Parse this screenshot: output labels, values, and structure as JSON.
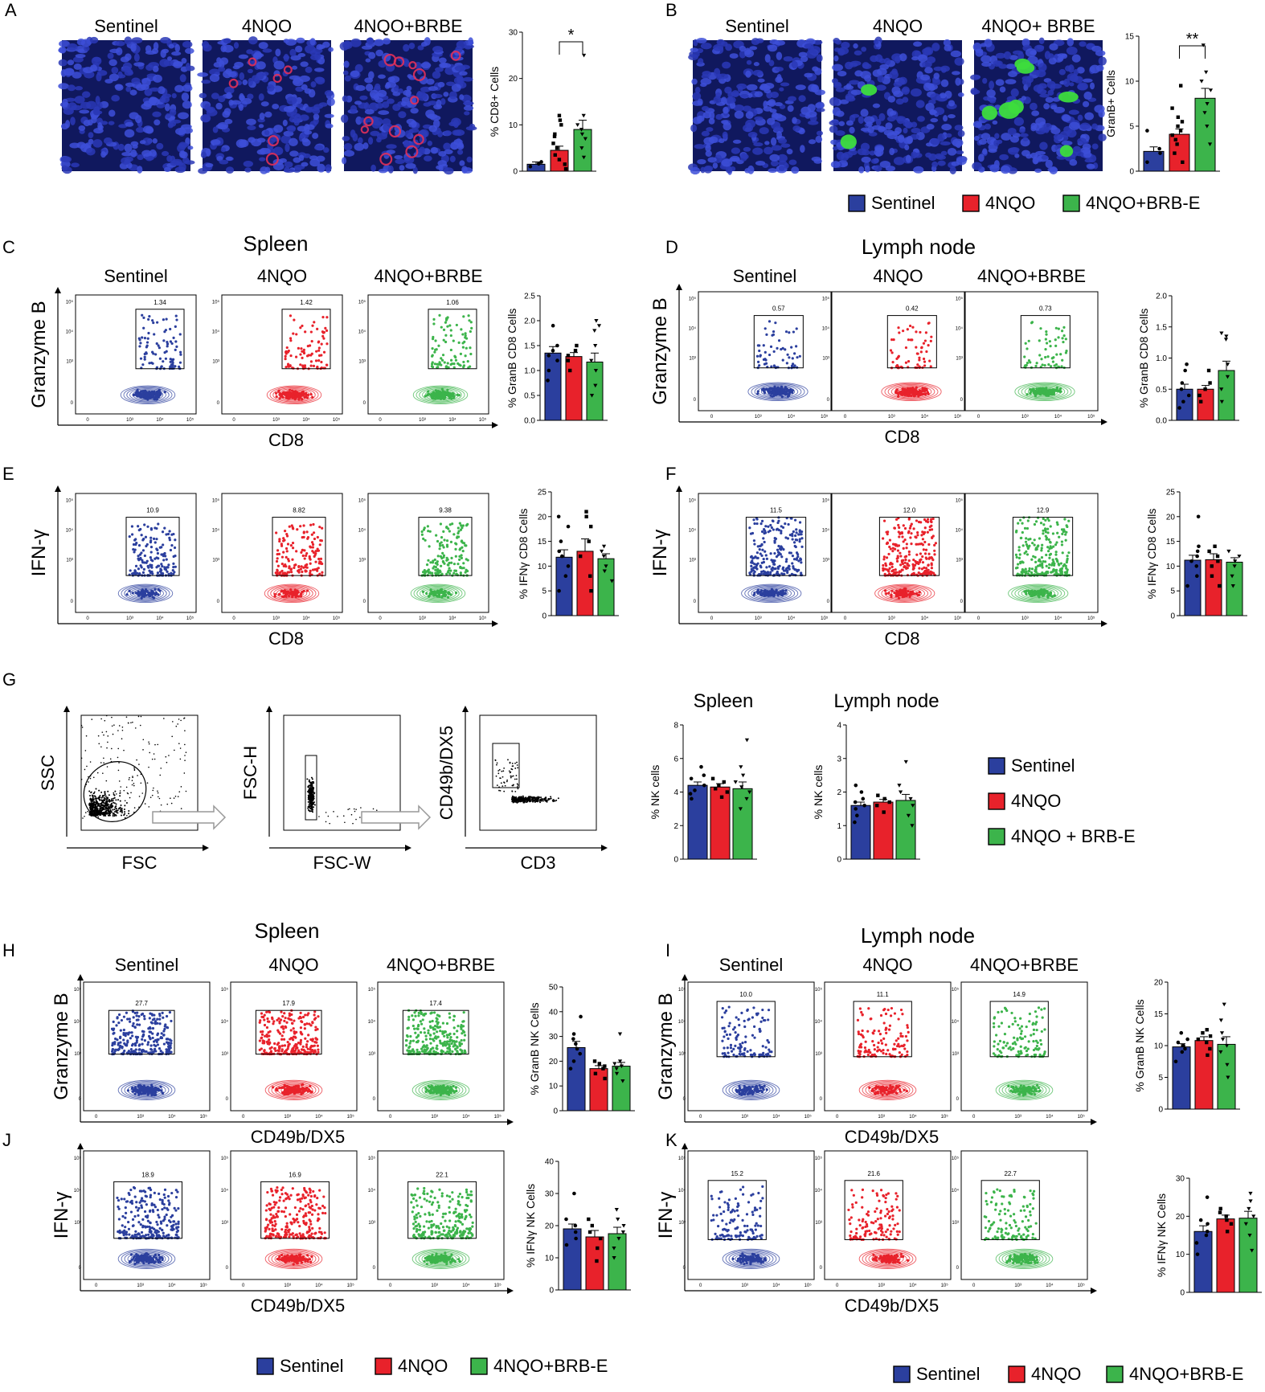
{
  "colors": {
    "sentinel": "#2b3f9e",
    "nqo": "#e8222b",
    "brbe": "#3cb44b",
    "micro_bg": "#1e2a9a",
    "cd8_stain": "#e0305a",
    "granb_stain": "#3ddc3d"
  },
  "panels": {
    "A": {
      "letter": "A",
      "groups": [
        "Sentinel",
        "4NQO",
        "4NQO+BRBE"
      ],
      "stain": "cd8"
    },
    "B": {
      "letter": "B",
      "groups": [
        "Sentinel",
        "4NQO",
        "4NQO+ BRBE"
      ],
      "stain": "granb"
    },
    "C": {
      "letter": "C",
      "tissue": "Spleen",
      "groups": [
        "Sentinel",
        "4NQO",
        "4NQO+BRBE"
      ],
      "ylabel": "Granzyme B",
      "xlabel": "CD8",
      "gates": [
        "1.34",
        "1.42",
        "1.06"
      ]
    },
    "D": {
      "letter": "D",
      "tissue": "Lymph node",
      "groups": [
        "Sentinel",
        "4NQO",
        "4NQO+BRBE"
      ],
      "ylabel": "Granzyme B",
      "xlabel": "CD8",
      "gates": [
        "0.57",
        "0.42",
        "0.73"
      ]
    },
    "E": {
      "letter": "E",
      "ylabel": "IFN-γ",
      "xlabel": "CD8",
      "gates": [
        "10.9",
        "8.82",
        "9.38"
      ]
    },
    "F": {
      "letter": "F",
      "ylabel": "IFN-γ",
      "xlabel": "CD8",
      "gates": [
        "11.5",
        "12.0",
        "12.9"
      ]
    },
    "G": {
      "letter": "G",
      "gating": [
        {
          "ylabel": "SSC",
          "xlabel": "FSC"
        },
        {
          "ylabel": "FSC-H",
          "xlabel": "FSC-W"
        },
        {
          "ylabel": "CD49b/DX5",
          "xlabel": "CD3"
        }
      ],
      "titles": [
        "Spleen",
        "Lymph node"
      ]
    },
    "H": {
      "letter": "H",
      "tissue": "Spleen",
      "groups": [
        "Sentinel",
        "4NQO",
        "4NQO+BRBE"
      ],
      "ylabel": "Granzyme B",
      "xlabel": "CD49b/DX5",
      "gates": [
        "27.7",
        "17.9",
        "17.4"
      ]
    },
    "I": {
      "letter": "I",
      "tissue": "Lymph node",
      "groups": [
        "Sentinel",
        "4NQO",
        "4NQO+BRBE"
      ],
      "ylabel": "Granzyme B",
      "xlabel": "CD49b/DX5",
      "gates": [
        "10.0",
        "11.1",
        "14.9"
      ]
    },
    "J": {
      "letter": "J",
      "ylabel": "IFN-γ",
      "xlabel": "CD49b/DX5",
      "gates": [
        "18.9",
        "16.9",
        "22.1"
      ]
    },
    "K": {
      "letter": "K",
      "ylabel": "IFN-γ",
      "xlabel": "CD49b/DX5",
      "gates": [
        "15.2",
        "21.6",
        "22.7"
      ]
    }
  },
  "legends": {
    "top": [
      "Sentinel",
      "4NQO",
      "4NQO+BRB-E"
    ],
    "g": [
      "Sentinel",
      "4NQO",
      "4NQO + BRB-E"
    ],
    "bottom_left": [
      "Sentinel",
      "4NQO",
      "4NQO+BRB-E"
    ],
    "bottom_right": [
      "Sentinel",
      "4NQO",
      "4NQO+BRB-E"
    ]
  },
  "chart_data": [
    {
      "id": "A",
      "type": "bar",
      "ylabel": "% CD8+ Cells",
      "ylim": [
        0,
        30
      ],
      "yticks": [
        0,
        10,
        20,
        30
      ],
      "categories": [
        "Sentinel",
        "4NQO",
        "4NQO+BRBE"
      ],
      "values": [
        1.5,
        4.5,
        9.0
      ],
      "errors": [
        0.5,
        0.9,
        2.0
      ],
      "points": [
        [
          1.0,
          1.6,
          2.0
        ],
        [
          0.5,
          1.5,
          2.5,
          3.5,
          5.0,
          6.0,
          7.5,
          8.0,
          10.0,
          11.0,
          12.0
        ],
        [
          3.0,
          5.0,
          7.0,
          8.0,
          9.0,
          10.0,
          12.0,
          25.0
        ]
      ],
      "significance": [
        {
          "from": 1,
          "to": 2,
          "label": "*"
        }
      ]
    },
    {
      "id": "B",
      "type": "bar",
      "ylabel": "GranB+ Cells",
      "ylim": [
        0,
        15
      ],
      "yticks": [
        0,
        5,
        10,
        15
      ],
      "categories": [
        "Sentinel",
        "4NQO",
        "4NQO+BRBE"
      ],
      "values": [
        2.2,
        4.1,
        8.1
      ],
      "errors": [
        0.5,
        0.6,
        1.1
      ],
      "points": [
        [
          1.0,
          2.0,
          2.5,
          4.5
        ],
        [
          1.0,
          2.0,
          3.0,
          3.5,
          4.0,
          4.5,
          5.0,
          5.5,
          6.0,
          7.0,
          9.5
        ],
        [
          3.0,
          5.0,
          6.5,
          7.5,
          9.0,
          10.0,
          11.0,
          14.0
        ]
      ],
      "significance": [
        {
          "from": 1,
          "to": 2,
          "label": "**"
        }
      ]
    },
    {
      "id": "C",
      "type": "bar",
      "ylabel": "% GranB CD8 Cells",
      "ylim": [
        0,
        2.5
      ],
      "yticks": [
        0,
        0.5,
        1.0,
        1.5,
        2.0,
        2.5
      ],
      "categories": [
        "Sentinel",
        "4NQO",
        "4NQO+BRBE"
      ],
      "values": [
        1.35,
        1.28,
        1.17
      ],
      "errors": [
        0.13,
        0.08,
        0.18
      ],
      "points": [
        [
          0.8,
          1.0,
          1.2,
          1.3,
          1.4,
          1.5,
          1.9
        ],
        [
          1.0,
          1.2,
          1.3,
          1.4,
          1.5
        ],
        [
          0.5,
          0.7,
          1.0,
          1.2,
          1.5,
          1.8,
          1.9,
          2.0
        ]
      ],
      "significance": []
    },
    {
      "id": "D",
      "type": "bar",
      "ylabel": "% GranB CD8 Cells",
      "ylim": [
        0,
        2.0
      ],
      "yticks": [
        0,
        0.5,
        1.0,
        1.5,
        2.0
      ],
      "categories": [
        "Sentinel",
        "4NQO",
        "4NQO+BRBE"
      ],
      "values": [
        0.5,
        0.5,
        0.8
      ],
      "errors": [
        0.08,
        0.06,
        0.15
      ],
      "points": [
        [
          0.2,
          0.3,
          0.4,
          0.5,
          0.6,
          0.8,
          0.9
        ],
        [
          0.3,
          0.4,
          0.5,
          0.6,
          0.8
        ],
        [
          0.3,
          0.5,
          0.7,
          0.9,
          1.3,
          1.35,
          1.4
        ]
      ],
      "significance": []
    },
    {
      "id": "E",
      "type": "bar",
      "ylabel": "% IFNγ CD8 Cells",
      "ylim": [
        0,
        25
      ],
      "yticks": [
        0,
        5,
        10,
        15,
        20,
        25
      ],
      "categories": [
        "Sentinel",
        "4NQO",
        "4NQO+BRBE"
      ],
      "values": [
        11.8,
        13.0,
        11.5
      ],
      "errors": [
        1.5,
        2.5,
        1.0
      ],
      "points": [
        [
          5.0,
          8.0,
          10.0,
          12.0,
          13.0,
          15.0,
          18.0,
          20.0
        ],
        [
          5.0,
          8.0,
          12.0,
          15.0,
          18.0,
          20.0,
          21.0
        ],
        [
          7.0,
          9.0,
          10.0,
          12.0,
          13.0,
          14.0
        ]
      ],
      "significance": []
    },
    {
      "id": "F",
      "type": "bar",
      "ylabel": "% IFNγ CD8 Cells",
      "ylim": [
        0,
        25
      ],
      "yticks": [
        0,
        5,
        10,
        15,
        20,
        25
      ],
      "categories": [
        "Sentinel",
        "4NQO",
        "4NQO+BRBE"
      ],
      "values": [
        11.2,
        11.3,
        10.8
      ],
      "errors": [
        1.0,
        1.2,
        0.9
      ],
      "points": [
        [
          6.0,
          8.0,
          10.0,
          11.0,
          12.0,
          13.0,
          14.0,
          20.0
        ],
        [
          6.0,
          8.0,
          10.0,
          11.0,
          12.0,
          13.0,
          14.0
        ],
        [
          6.0,
          8.0,
          10.0,
          11.0,
          12.0,
          13.0
        ]
      ],
      "significance": []
    },
    {
      "id": "G1",
      "type": "bar",
      "title": "Spleen",
      "ylabel": "% NK cells",
      "ylim": [
        0,
        8
      ],
      "yticks": [
        0,
        2,
        4,
        6,
        8
      ],
      "categories": [
        "Sentinel",
        "4NQO",
        "4NQO+BRB-E"
      ],
      "values": [
        4.4,
        4.3,
        4.2
      ],
      "errors": [
        0.2,
        0.2,
        0.4
      ],
      "points": [
        [
          3.6,
          3.9,
          4.1,
          4.4,
          4.8,
          5.0,
          5.5
        ],
        [
          3.7,
          4.0,
          4.2,
          4.4,
          4.6,
          4.8
        ],
        [
          3.0,
          3.6,
          4.0,
          4.3,
          4.6,
          5.0,
          5.5,
          7.1
        ]
      ],
      "significance": []
    },
    {
      "id": "G2",
      "type": "bar",
      "title": "Lymph node",
      "ylabel": "% NK cells",
      "ylim": [
        0,
        4
      ],
      "yticks": [
        0,
        1,
        2,
        3,
        4
      ],
      "categories": [
        "Sentinel",
        "4NQO",
        "4NQO+BRB-E"
      ],
      "values": [
        1.6,
        1.7,
        1.75
      ],
      "errors": [
        0.1,
        0.08,
        0.18
      ],
      "points": [
        [
          1.1,
          1.3,
          1.5,
          1.6,
          1.7,
          1.8,
          2.0,
          2.2
        ],
        [
          1.4,
          1.6,
          1.7,
          1.8,
          1.9
        ],
        [
          1.0,
          1.3,
          1.6,
          1.8,
          2.0,
          2.2,
          2.9
        ]
      ],
      "significance": []
    },
    {
      "id": "H",
      "type": "bar",
      "ylabel": "% GranB NK Cells",
      "ylim": [
        0,
        50
      ],
      "yticks": [
        0,
        10,
        20,
        30,
        40,
        50
      ],
      "categories": [
        "Sentinel",
        "4NQO",
        "4NQO+BRBE"
      ],
      "values": [
        25.5,
        17.0,
        18.0
      ],
      "errors": [
        2.5,
        1.2,
        1.5
      ],
      "points": [
        [
          17.0,
          20.0,
          23.0,
          25.0,
          27.0,
          29.0,
          31.0,
          38.0
        ],
        [
          13.0,
          15.0,
          17.0,
          18.0,
          19.0,
          20.0
        ],
        [
          12.0,
          15.0,
          17.0,
          18.0,
          19.0,
          20.0,
          31.0
        ]
      ],
      "significance": []
    },
    {
      "id": "I",
      "type": "bar",
      "ylabel": "% GranB NK Cells",
      "ylim": [
        0,
        20
      ],
      "yticks": [
        0,
        5,
        10,
        15,
        20
      ],
      "categories": [
        "Sentinel",
        "4NQO",
        "4NQO+BRBE"
      ],
      "values": [
        9.8,
        10.8,
        10.2
      ],
      "errors": [
        0.5,
        0.6,
        1.2
      ],
      "points": [
        [
          7.5,
          9.0,
          9.5,
          10.0,
          10.5,
          11.0,
          12.0
        ],
        [
          8.5,
          9.5,
          10.5,
          11.0,
          11.5,
          12.0,
          12.5
        ],
        [
          5.0,
          7.0,
          9.0,
          10.0,
          11.0,
          12.0,
          14.0,
          16.5
        ]
      ],
      "significance": []
    },
    {
      "id": "J",
      "type": "bar",
      "ylabel": "% IFNγ NK Cells",
      "ylim": [
        0,
        40
      ],
      "yticks": [
        0,
        10,
        20,
        30,
        40
      ],
      "categories": [
        "Sentinel",
        "4NQO",
        "4NQO+BRBE"
      ],
      "values": [
        19.0,
        16.5,
        17.5
      ],
      "errors": [
        1.5,
        2.0,
        2.0
      ],
      "points": [
        [
          14.0,
          16.0,
          18.0,
          20.0,
          22.0,
          30.0
        ],
        [
          9.0,
          13.0,
          16.0,
          18.0,
          20.0,
          22.0
        ],
        [
          10.0,
          13.0,
          16.0,
          18.0,
          20.0,
          22.0,
          25.0
        ]
      ],
      "significance": []
    },
    {
      "id": "K",
      "type": "bar",
      "ylabel": "% IFNγ NK Cells",
      "ylim": [
        0,
        30
      ],
      "yticks": [
        0,
        10,
        20,
        30
      ],
      "categories": [
        "Sentinel",
        "4NQO",
        "4NQO+BRBE"
      ],
      "values": [
        16.0,
        19.3,
        19.5
      ],
      "errors": [
        1.5,
        1.0,
        1.8
      ],
      "points": [
        [
          10.0,
          13.0,
          15.0,
          16.0,
          18.0,
          19.0,
          25.0
        ],
        [
          16.0,
          18.0,
          19.0,
          20.0,
          21.0,
          22.0
        ],
        [
          11.0,
          15.0,
          18.0,
          20.0,
          22.0,
          24.0,
          26.0
        ]
      ],
      "significance": []
    }
  ]
}
